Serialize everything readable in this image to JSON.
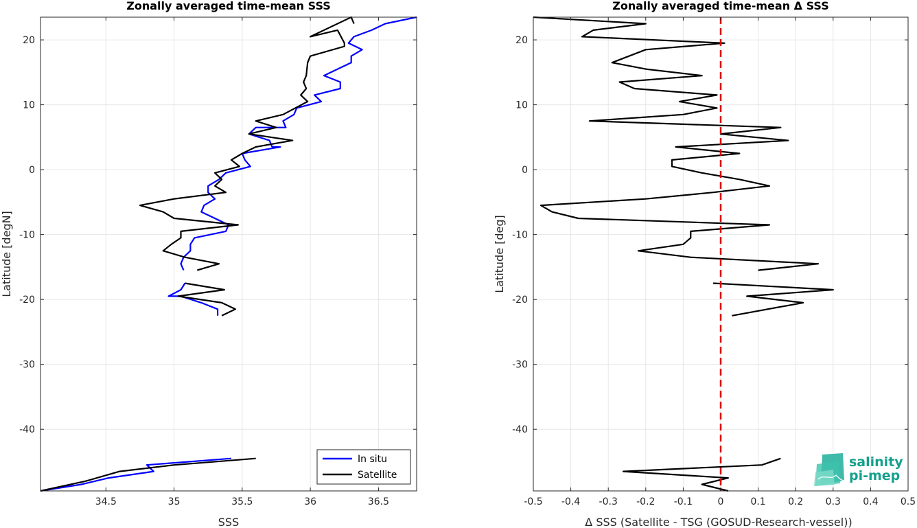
{
  "chart_data": [
    {
      "type": "line",
      "title": "Zonally averaged time-mean SSS",
      "xlabel": "SSS",
      "ylabel": "Latitude [degN]",
      "xlim": [
        34.02,
        36.78
      ],
      "ylim": [
        -49.5,
        23.5
      ],
      "xticks": [
        "34.5",
        "35",
        "35.5",
        "36",
        "36.5"
      ],
      "xtick_values": [
        34.5,
        35,
        35.5,
        36,
        36.5
      ],
      "yticks": [
        "20",
        "10",
        "0",
        "-10",
        "-20",
        "-30",
        "-40"
      ],
      "ytick_values": [
        20,
        10,
        0,
        -10,
        -20,
        -30,
        -40
      ],
      "grid": true,
      "legend_position": "bottom-right",
      "series": [
        {
          "name": "In situ",
          "color": "#0000ff",
          "segments": [
            [
              [
                36.78,
                23.5
              ],
              [
                36.55,
                22.5
              ],
              [
                36.45,
                21.5
              ],
              [
                36.32,
                20.5
              ],
              [
                36.28,
                19.5
              ],
              [
                36.38,
                18.5
              ],
              [
                36.3,
                17.5
              ],
              [
                36.3,
                16.5
              ],
              [
                36.2,
                15.5
              ],
              [
                36.1,
                14.5
              ],
              [
                36.22,
                13.5
              ],
              [
                36.22,
                12.5
              ],
              [
                36.03,
                11.5
              ],
              [
                36.08,
                10.5
              ],
              [
                35.9,
                9.5
              ],
              [
                35.88,
                8.5
              ],
              [
                35.8,
                7.5
              ],
              [
                35.82,
                6.5
              ],
              [
                35.6,
                6.5
              ],
              [
                35.55,
                5.5
              ],
              [
                35.7,
                4.5
              ],
              [
                35.72,
                3.5
              ],
              [
                35.78,
                3.5
              ],
              [
                35.5,
                2.5
              ],
              [
                35.52,
                1.5
              ],
              [
                35.56,
                0.5
              ],
              [
                35.38,
                -0.5
              ],
              [
                35.33,
                -1.5
              ],
              [
                35.25,
                -2.5
              ],
              [
                35.25,
                -3.5
              ],
              [
                35.3,
                -4.5
              ],
              [
                35.22,
                -5.5
              ],
              [
                35.2,
                -6.5
              ],
              [
                35.3,
                -7.5
              ],
              [
                35.4,
                -8.5
              ],
              [
                35.38,
                -9.5
              ],
              [
                35.15,
                -10.5
              ],
              [
                35.12,
                -11.5
              ],
              [
                35.12,
                -12.5
              ],
              [
                35.07,
                -13.5
              ],
              [
                35.05,
                -14.5
              ],
              [
                35.07,
                -15.5
              ]
            ],
            [
              [
                35.08,
                -17.5
              ],
              [
                35.05,
                -18.5
              ],
              [
                34.96,
                -19.5
              ],
              [
                35.05,
                -19.5
              ],
              [
                35.2,
                -20.5
              ],
              [
                35.32,
                -21.5
              ],
              [
                35.32,
                -22.5
              ]
            ],
            [
              [
                35.42,
                -44.5
              ],
              [
                34.8,
                -45.5
              ],
              [
                34.85,
                -46.5
              ],
              [
                34.52,
                -47.5
              ],
              [
                34.32,
                -48.5
              ],
              [
                34.02,
                -49.5
              ]
            ]
          ]
        },
        {
          "name": "Satellite",
          "color": "#000000",
          "segments": [
            [
              [
                36.32,
                22.5
              ],
              [
                36.3,
                23.5
              ],
              [
                36.0,
                20.5
              ],
              [
                36.2,
                21.5
              ],
              [
                36.25,
                19.5
              ],
              [
                36.25,
                19.0
              ],
              [
                36.0,
                17.5
              ],
              [
                35.98,
                16.5
              ],
              [
                35.97,
                14.5
              ],
              [
                35.95,
                13.5
              ],
              [
                35.97,
                12.5
              ],
              [
                35.93,
                11.5
              ],
              [
                35.98,
                10.5
              ],
              [
                35.8,
                8.5
              ],
              [
                35.6,
                7.5
              ],
              [
                35.75,
                6.5
              ],
              [
                35.55,
                5.5
              ],
              [
                35.87,
                4.5
              ],
              [
                35.6,
                3.5
              ],
              [
                35.5,
                2.5
              ],
              [
                35.42,
                1.5
              ],
              [
                35.48,
                0.5
              ],
              [
                35.3,
                -0.5
              ],
              [
                35.35,
                -1.5
              ],
              [
                35.3,
                -2.5
              ],
              [
                35.38,
                -3.5
              ],
              [
                35.0,
                -4.5
              ],
              [
                34.75,
                -5.5
              ],
              [
                34.92,
                -6.5
              ],
              [
                35.0,
                -7.5
              ],
              [
                35.47,
                -8.5
              ],
              [
                35.05,
                -9.5
              ],
              [
                35.05,
                -10.5
              ],
              [
                34.98,
                -11.5
              ],
              [
                34.92,
                -12.5
              ],
              [
                35.08,
                -13.5
              ],
              [
                35.33,
                -14.5
              ],
              [
                35.17,
                -15.5
              ]
            ],
            [
              [
                35.08,
                -17.5
              ],
              [
                35.37,
                -18.5
              ],
              [
                35.03,
                -19.5
              ],
              [
                35.35,
                -20.5
              ],
              [
                35.45,
                -21.5
              ],
              [
                35.35,
                -22.5
              ]
            ],
            [
              [
                35.6,
                -44.5
              ],
              [
                35.0,
                -45.5
              ],
              [
                34.6,
                -46.5
              ],
              [
                34.35,
                -48.0
              ],
              [
                34.02,
                -49.5
              ]
            ]
          ]
        }
      ]
    },
    {
      "type": "line",
      "title": "Zonally averaged time-mean Δ SSS",
      "xlabel": "Δ SSS (Satellite - TSG (GOSUD-Research-vessel))",
      "ylabel": "Latitude [deg]",
      "xlim": [
        -0.5,
        0.5
      ],
      "ylim": [
        -49.5,
        23.5
      ],
      "xticks": [
        "-0.5",
        "-0.4",
        "-0.3",
        "-0.2",
        "-0.1",
        "0",
        "0.1",
        "0.2",
        "0.3",
        "0.4",
        "0.5"
      ],
      "xtick_values": [
        -0.5,
        -0.4,
        -0.3,
        -0.2,
        -0.1,
        0,
        0.1,
        0.2,
        0.3,
        0.4,
        0.5
      ],
      "yticks": [
        "20",
        "10",
        "0",
        "-10",
        "-20",
        "-30",
        "-40"
      ],
      "ytick_values": [
        20,
        10,
        0,
        -10,
        -20,
        -30,
        -40
      ],
      "grid": true,
      "reference_line": {
        "x": 0,
        "color": "#dd0000",
        "style": "dashed"
      },
      "series": [
        {
          "color": "#000000",
          "segments": [
            [
              [
                -0.5,
                23.5
              ],
              [
                -0.2,
                22.5
              ],
              [
                -0.34,
                21.5
              ],
              [
                -0.37,
                20.5
              ],
              [
                0.01,
                19.5
              ],
              [
                -0.2,
                18.5
              ],
              [
                -0.29,
                16.5
              ],
              [
                -0.2,
                15.5
              ],
              [
                -0.05,
                14.5
              ],
              [
                -0.27,
                13.5
              ],
              [
                -0.23,
                12.5
              ],
              [
                -0.01,
                11.5
              ],
              [
                -0.11,
                10.5
              ],
              [
                -0.01,
                9.5
              ],
              [
                -0.1,
                8.5
              ],
              [
                -0.35,
                7.5
              ],
              [
                0.16,
                6.5
              ],
              [
                0,
                5.5
              ],
              [
                0.18,
                4.5
              ],
              [
                -0.12,
                3.5
              ],
              [
                0.05,
                2.5
              ],
              [
                -0.13,
                1.5
              ],
              [
                -0.13,
                0.5
              ],
              [
                -0.05,
                -0.5
              ],
              [
                0.05,
                -1.5
              ],
              [
                0.13,
                -2.5
              ],
              [
                -0.02,
                -3.5
              ],
              [
                -0.2,
                -4.5
              ],
              [
                -0.48,
                -5.5
              ],
              [
                -0.45,
                -6.5
              ],
              [
                -0.38,
                -7.5
              ],
              [
                0.13,
                -8.5
              ],
              [
                -0.08,
                -9.5
              ],
              [
                -0.08,
                -10.5
              ],
              [
                -0.1,
                -11.5
              ],
              [
                -0.22,
                -12.5
              ],
              [
                -0.08,
                -13.5
              ],
              [
                0.26,
                -14.5
              ],
              [
                0.1,
                -15.5
              ]
            ],
            [
              [
                -0.02,
                -17.5
              ],
              [
                0.3,
                -18.5
              ],
              [
                0.07,
                -19.5
              ],
              [
                0.22,
                -20.5
              ],
              [
                0.03,
                -22.5
              ]
            ],
            [
              [
                0.16,
                -44.5
              ],
              [
                0.11,
                -45.5
              ],
              [
                -0.26,
                -46.5
              ],
              [
                0.02,
                -47.5
              ],
              [
                -0.05,
                -48.5
              ],
              [
                0.02,
                -49.5
              ]
            ]
          ]
        }
      ]
    }
  ],
  "legend": {
    "items": [
      {
        "label": "In situ",
        "color": "#0000ff"
      },
      {
        "label": "Satellite",
        "color": "#000000"
      }
    ]
  },
  "logo": {
    "line1": "salinity",
    "line2": "pi-mep",
    "text_color": "#14a08c"
  }
}
